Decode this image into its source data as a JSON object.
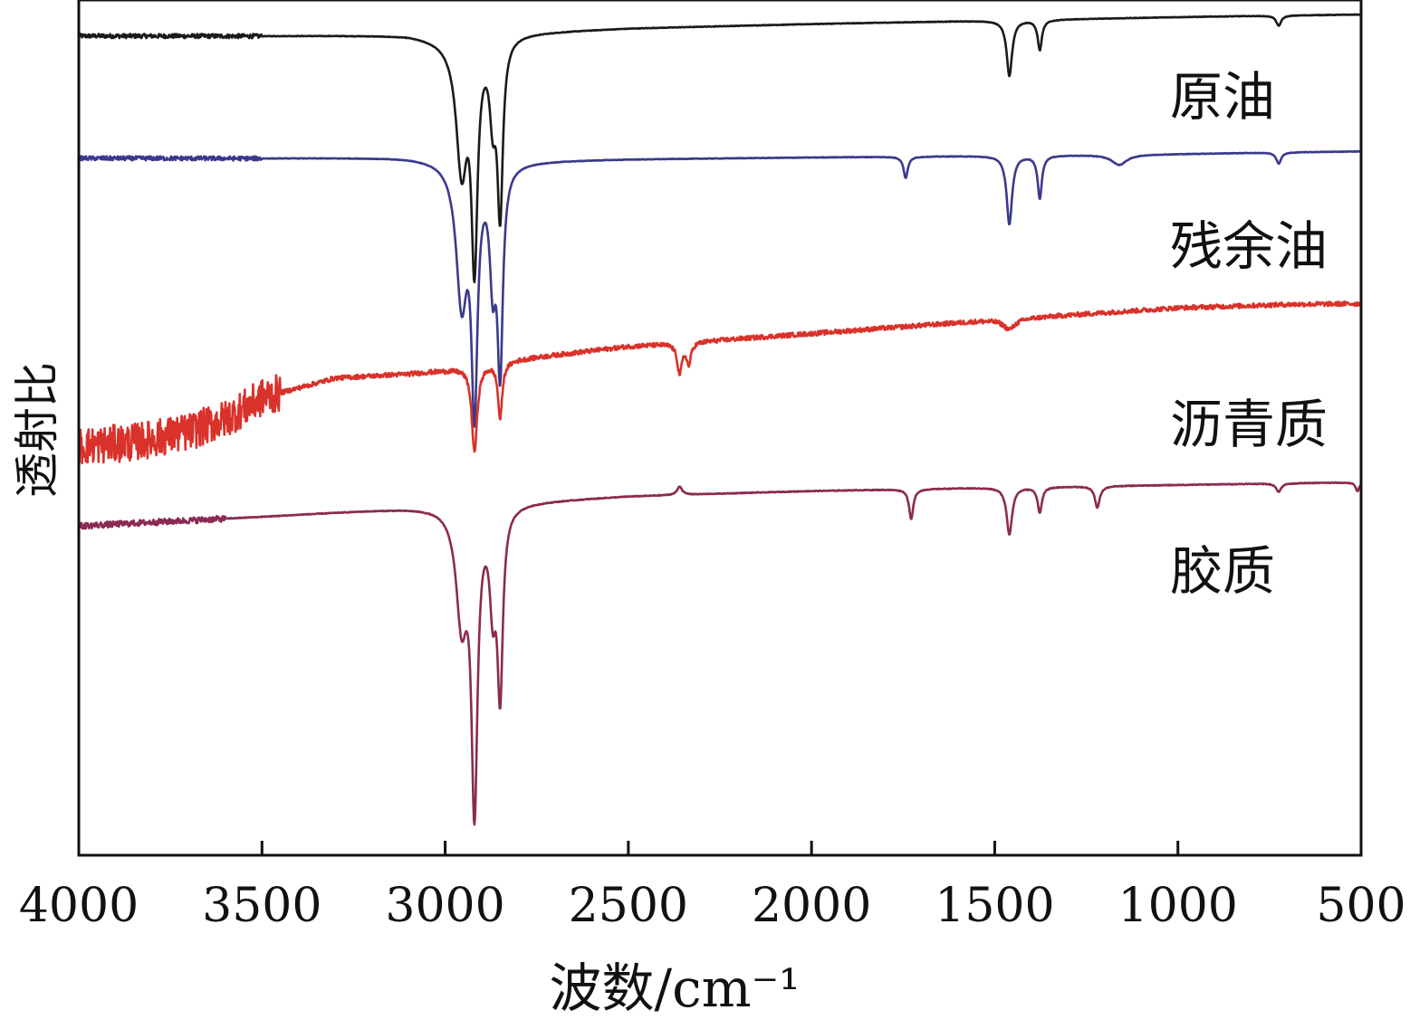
{
  "chart_data": {
    "type": "line",
    "title": "",
    "xlabel": "波数/cm⁻¹",
    "ylabel": "透射比",
    "xlim": [
      4000,
      500
    ],
    "x_reversed": true,
    "ylim": [
      0,
      100
    ],
    "grid": false,
    "xticks": [
      4000,
      3500,
      3000,
      2500,
      2000,
      1500,
      1000,
      500
    ],
    "xtick_labels": [
      "4000",
      "3500",
      "3000",
      "2500",
      "2000",
      "1500",
      "1000",
      "500"
    ],
    "series": [
      {
        "name": "原油",
        "color": "#1a1a1a",
        "noise_until": 3500,
        "noise_amp": 0.25,
        "points": [
          [
            4000,
            95.8
          ],
          [
            3500,
            95.8
          ],
          [
            3100,
            95.9
          ],
          [
            3000,
            95.5
          ],
          [
            2800,
            96.2
          ],
          [
            2500,
            96.7
          ],
          [
            2000,
            97.2
          ],
          [
            1500,
            97.6
          ],
          [
            1000,
            98.0
          ],
          [
            700,
            98.2
          ],
          [
            500,
            98.3
          ]
        ],
        "peaks": [
          {
            "x": 2955,
            "depth": 15,
            "width": 18
          },
          {
            "x": 2920,
            "depth": 25,
            "width": 10
          },
          {
            "x": 2870,
            "depth": 8,
            "width": 10
          },
          {
            "x": 2850,
            "depth": 20,
            "width": 9
          },
          {
            "x": 1460,
            "depth": 6.5,
            "width": 9
          },
          {
            "x": 1377,
            "depth": 3.5,
            "width": 7
          },
          {
            "x": 725,
            "depth": 1.2,
            "width": 8
          }
        ]
      },
      {
        "name": "残余油",
        "color": "#3a3a8c",
        "noise_until": 3500,
        "noise_amp": 0.25,
        "points": [
          [
            4000,
            81.5
          ],
          [
            3500,
            81.5
          ],
          [
            3100,
            81.6
          ],
          [
            3000,
            81.4
          ],
          [
            2800,
            81.2
          ],
          [
            2500,
            81.4
          ],
          [
            2000,
            81.6
          ],
          [
            1500,
            81.8
          ],
          [
            1000,
            82.0
          ],
          [
            700,
            82.2
          ],
          [
            500,
            82.3
          ]
        ],
        "peaks": [
          {
            "x": 2955,
            "depth": 16,
            "width": 18
          },
          {
            "x": 2920,
            "depth": 27,
            "width": 10
          },
          {
            "x": 2870,
            "depth": 12,
            "width": 10
          },
          {
            "x": 2850,
            "depth": 23,
            "width": 9
          },
          {
            "x": 1743,
            "depth": 2.5,
            "width": 7
          },
          {
            "x": 1460,
            "depth": 8,
            "width": 9
          },
          {
            "x": 1377,
            "depth": 5,
            "width": 7
          },
          {
            "x": 1160,
            "depth": 1.2,
            "width": 25
          },
          {
            "x": 725,
            "depth": 1.3,
            "width": 8
          }
        ]
      },
      {
        "name": "沥青质",
        "color": "#d9322b",
        "noise_until": 3450,
        "noise_amp": 2.2,
        "points": [
          [
            4000,
            47.8
          ],
          [
            3850,
            48.3
          ],
          [
            3700,
            49.5
          ],
          [
            3600,
            51.0
          ],
          [
            3500,
            53.5
          ],
          [
            3300,
            55.8
          ],
          [
            3100,
            56.3
          ],
          [
            3000,
            56.7
          ],
          [
            2800,
            58.0
          ],
          [
            2500,
            59.5
          ],
          [
            2000,
            61.0
          ],
          [
            1500,
            62.6
          ],
          [
            1000,
            64.0
          ],
          [
            700,
            64.4
          ],
          [
            500,
            64.5
          ]
        ],
        "peaks": [
          {
            "x": 2920,
            "depth": 10,
            "width": 9
          },
          {
            "x": 2850,
            "depth": 6.5,
            "width": 7
          },
          {
            "x": 2360,
            "depth": 3.5,
            "width": 8
          },
          {
            "x": 2335,
            "depth": 2.5,
            "width": 7
          },
          {
            "x": 1460,
            "depth": 1.2,
            "width": 20
          }
        ]
      },
      {
        "name": "胶质",
        "color": "#8b2a52",
        "noise_until": 3600,
        "noise_amp": 0.35,
        "points": [
          [
            4000,
            38.5
          ],
          [
            3500,
            39.6
          ],
          [
            3100,
            40.6
          ],
          [
            3000,
            40.8
          ],
          [
            2800,
            41.3
          ],
          [
            2500,
            42.0
          ],
          [
            2000,
            42.6
          ],
          [
            1500,
            43.0
          ],
          [
            1000,
            43.3
          ],
          [
            700,
            43.5
          ],
          [
            500,
            43.6
          ]
        ],
        "peaks": [
          {
            "x": 2955,
            "depth": 13,
            "width": 18
          },
          {
            "x": 2920,
            "depth": 34,
            "width": 10
          },
          {
            "x": 2870,
            "depth": 10,
            "width": 10
          },
          {
            "x": 2850,
            "depth": 21,
            "width": 9
          },
          {
            "x": 2360,
            "depth": -1,
            "width": 8
          },
          {
            "x": 1728,
            "depth": 3.5,
            "width": 7
          },
          {
            "x": 1460,
            "depth": 5.5,
            "width": 9
          },
          {
            "x": 1377,
            "depth": 3,
            "width": 7
          },
          {
            "x": 1220,
            "depth": 2.5,
            "width": 8
          },
          {
            "x": 725,
            "depth": 1,
            "width": 8
          },
          {
            "x": 510,
            "depth": 1,
            "width": 6
          }
        ]
      }
    ]
  }
}
